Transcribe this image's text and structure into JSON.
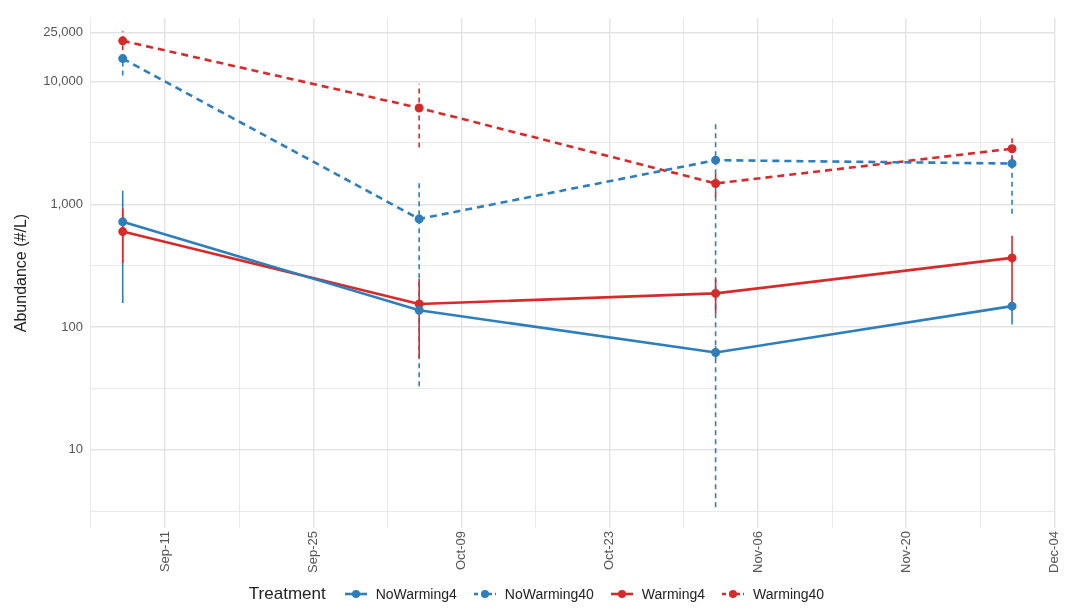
{
  "chart_data": {
    "type": "line",
    "ylabel": "Abundance (#/L)",
    "legend_title": "Treatment",
    "legend": "bottom",
    "grid": true,
    "log": "y",
    "marker": "circle",
    "x": [
      "--09-07",
      "--10-05",
      "--11-02",
      "--11-30"
    ],
    "xlim": [
      "--09-04",
      "--12-04"
    ],
    "xticks": [
      {
        "value": "--09-04",
        "label": null
      },
      {
        "value": "--09-11",
        "label": "Sep-11"
      },
      {
        "value": "--09-18",
        "label": null
      },
      {
        "value": "--09-25",
        "label": "Sep-25"
      },
      {
        "value": "--10-02",
        "label": null
      },
      {
        "value": "--10-09",
        "label": "Oct-09"
      },
      {
        "value": "--10-16",
        "label": null
      },
      {
        "value": "--10-23",
        "label": "Oct-23"
      },
      {
        "value": "--10-30",
        "label": null
      },
      {
        "value": "--11-06",
        "label": "Nov-06"
      },
      {
        "value": "--11-13",
        "label": null
      },
      {
        "value": "--11-20",
        "label": "Nov-20"
      },
      {
        "value": "--11-27",
        "label": null
      },
      {
        "value": "--12-04",
        "label": "Dec-04"
      }
    ],
    "ylim": [
      2.3,
      33000
    ],
    "yticks": [
      {
        "value": 3.16,
        "label": null
      },
      {
        "value": 10,
        "label": "10"
      },
      {
        "value": 31.6,
        "label": null
      },
      {
        "value": 100,
        "label": "100"
      },
      {
        "value": 316,
        "label": null
      },
      {
        "value": 1000,
        "label": "1,000"
      },
      {
        "value": 3162,
        "label": null
      },
      {
        "value": 10000,
        "label": "10,000"
      },
      {
        "value": 25000,
        "label": "25,000"
      }
    ],
    "series": [
      {
        "name": "NoWarming4",
        "color": "#2e7ebc",
        "line_style": "solid",
        "values": [
          720,
          137,
          62,
          148
        ],
        "errors": [
          [
            157,
            1290
          ],
          null,
          [
            55,
            70
          ],
          [
            105,
            160
          ]
        ]
      },
      {
        "name": "NoWarming40",
        "color": "#2e7ebc",
        "line_style": "dashed",
        "values": [
          15400,
          760,
          2290,
          2150
        ],
        "errors": [
          [
            11200,
            16000
          ],
          [
            33,
            1510
          ],
          [
            3.4,
            4640
          ],
          [
            840,
            2730
          ]
        ]
      },
      {
        "name": "Warming4",
        "color": "#d62b2b",
        "line_style": "solid",
        "values": [
          600,
          154,
          188,
          366
        ],
        "errors": [
          [
            332,
            925
          ],
          [
            56,
            247
          ],
          [
            129,
            245
          ],
          [
            150,
            555
          ]
        ]
      },
      {
        "name": "Warming40",
        "color": "#d62b2b",
        "line_style": "dashed",
        "values": [
          21500,
          6100,
          1480,
          2840
        ],
        "errors": [
          [
            18000,
            25700
          ],
          [
            2900,
            9600
          ],
          [
            1150,
            1800
          ],
          [
            2240,
            3450
          ]
        ]
      }
    ]
  }
}
